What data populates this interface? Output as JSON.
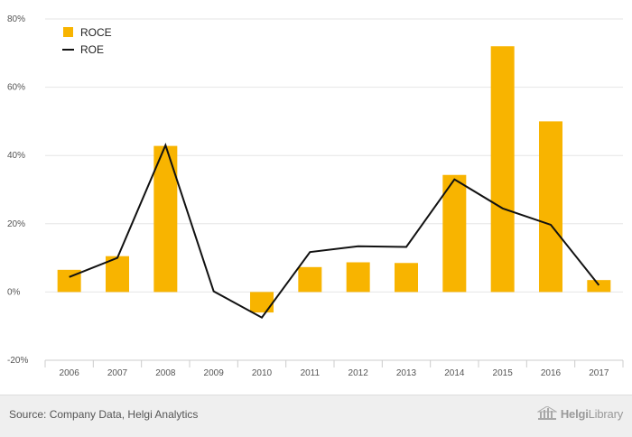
{
  "chart_data": {
    "type": "bar",
    "categories": [
      "2006",
      "2007",
      "2008",
      "2009",
      "2010",
      "2011",
      "2012",
      "2013",
      "2014",
      "2015",
      "2016",
      "2017"
    ],
    "series": [
      {
        "name": "ROCE",
        "type": "bar",
        "color": "#f8b400",
        "values": [
          6.5,
          10.5,
          42.8,
          0,
          -6.0,
          7.3,
          8.7,
          8.5,
          34.3,
          72.0,
          50.0,
          3.5
        ]
      },
      {
        "name": "ROE",
        "type": "line",
        "color": "#111111",
        "values": [
          4.4,
          10.0,
          43.0,
          0.2,
          -7.5,
          11.7,
          13.4,
          13.2,
          33.0,
          24.5,
          19.7,
          2.0
        ]
      }
    ],
    "ylim": [
      -20,
      80
    ],
    "yticks": [
      -20,
      0,
      20,
      40,
      60,
      80
    ],
    "ytick_labels": [
      "-20%",
      "0%",
      "20%",
      "40%",
      "60%",
      "80%"
    ],
    "grid": true,
    "legend": "top-left"
  },
  "footer": {
    "source": "Source: Company Data, Helgi Analytics",
    "brand_prefix": "Helgi",
    "brand_suffix": "Library"
  }
}
